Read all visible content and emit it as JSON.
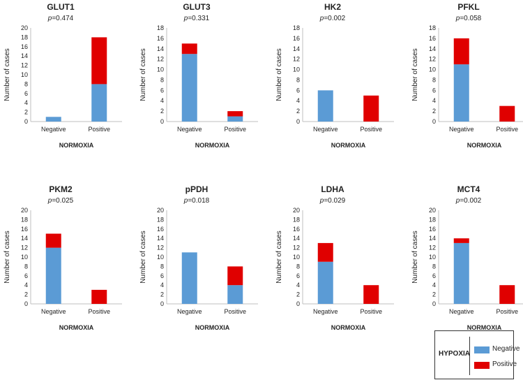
{
  "colors": {
    "negative": "#5b9bd5",
    "positive": "#e00000",
    "axis": "#bfbfbf",
    "text": "#222222"
  },
  "legend": {
    "title": "HYPOXIA",
    "items": [
      {
        "label": "Negative",
        "color": "#5b9bd5"
      },
      {
        "label": "Positive",
        "color": "#e00000"
      }
    ]
  },
  "chart_data": [
    {
      "type": "bar",
      "stacked": true,
      "title": "GLUT1",
      "pvalue_prefix": "p",
      "pvalue": "=0.474",
      "categories": [
        "Negative",
        "Positive"
      ],
      "xlabel": "NORMOXIA",
      "ylabel": "Number of cases",
      "ylim": [
        0,
        20
      ],
      "ytick_step": 2,
      "series": [
        {
          "name": "Negative",
          "values": [
            1,
            8
          ]
        },
        {
          "name": "Positive",
          "values": [
            0,
            10
          ]
        }
      ]
    },
    {
      "type": "bar",
      "stacked": true,
      "title": "GLUT3",
      "pvalue_prefix": "p",
      "pvalue": "=0.331",
      "categories": [
        "Negative",
        "Positive"
      ],
      "xlabel": "NORMOXIA",
      "ylabel": "Number of cases",
      "ylim": [
        0,
        18
      ],
      "ytick_step": 2,
      "series": [
        {
          "name": "Negative",
          "values": [
            13,
            1
          ]
        },
        {
          "name": "Positive",
          "values": [
            2,
            1
          ]
        }
      ]
    },
    {
      "type": "bar",
      "stacked": true,
      "title": "HK2",
      "pvalue_prefix": "p",
      "pvalue": "=0.002",
      "categories": [
        "Negative",
        "Positive"
      ],
      "xlabel": "NORMOXIA",
      "ylabel": "Number of cases",
      "ylim": [
        0,
        18
      ],
      "ytick_step": 2,
      "series": [
        {
          "name": "Negative",
          "values": [
            6,
            0
          ]
        },
        {
          "name": "Positive",
          "values": [
            0,
            5
          ]
        }
      ]
    },
    {
      "type": "bar",
      "stacked": true,
      "title": "PFKL",
      "pvalue_prefix": "p",
      "pvalue": "=0.058",
      "categories": [
        "Negative",
        "Positive"
      ],
      "xlabel": "NORMOXIA",
      "ylabel": "Number of cases",
      "ylim": [
        0,
        18
      ],
      "ytick_step": 2,
      "series": [
        {
          "name": "Negative",
          "values": [
            11,
            0
          ]
        },
        {
          "name": "Positive",
          "values": [
            5,
            3
          ]
        }
      ]
    },
    {
      "type": "bar",
      "stacked": true,
      "title": "PKM2",
      "pvalue_prefix": "p",
      "pvalue": "=0.025",
      "categories": [
        "Negative",
        "Positive"
      ],
      "xlabel": "NORMOXIA",
      "ylabel": "Number of cases",
      "ylim": [
        0,
        20
      ],
      "ytick_step": 2,
      "series": [
        {
          "name": "Negative",
          "values": [
            12,
            0
          ]
        },
        {
          "name": "Positive",
          "values": [
            3,
            3
          ]
        }
      ]
    },
    {
      "type": "bar",
      "stacked": true,
      "title": "pPDH",
      "pvalue_prefix": "p",
      "pvalue": "=0.018",
      "categories": [
        "Negative",
        "Positive"
      ],
      "xlabel": "NORMOXIA",
      "ylabel": "Number of cases",
      "ylim": [
        0,
        20
      ],
      "ytick_step": 2,
      "series": [
        {
          "name": "Negative",
          "values": [
            11,
            4
          ]
        },
        {
          "name": "Positive",
          "values": [
            0,
            4
          ]
        }
      ]
    },
    {
      "type": "bar",
      "stacked": true,
      "title": "LDHA",
      "pvalue_prefix": "p",
      "pvalue": "=0.029",
      "categories": [
        "Negative",
        "Positive"
      ],
      "xlabel": "NORMOXIA",
      "ylabel": "Number of cases",
      "ylim": [
        0,
        20
      ],
      "ytick_step": 2,
      "series": [
        {
          "name": "Negative",
          "values": [
            9,
            0
          ]
        },
        {
          "name": "Positive",
          "values": [
            4,
            4
          ]
        }
      ]
    },
    {
      "type": "bar",
      "stacked": true,
      "title": "MCT4",
      "pvalue_prefix": "p",
      "pvalue": "=0.002",
      "categories": [
        "Negative",
        "Positive"
      ],
      "xlabel": "NORMOXIA",
      "ylabel": "Number of cases",
      "ylim": [
        0,
        20
      ],
      "ytick_step": 2,
      "series": [
        {
          "name": "Negative",
          "values": [
            13,
            0
          ]
        },
        {
          "name": "Positive",
          "values": [
            1,
            4
          ]
        }
      ]
    }
  ]
}
